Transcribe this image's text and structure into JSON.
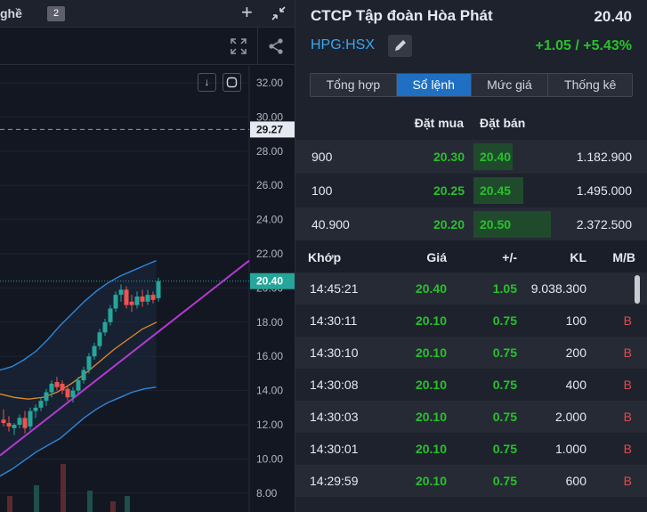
{
  "chart_panel": {
    "tab_label": "ghề",
    "tab_count": "2",
    "add_tab": "+",
    "download_label": "↓"
  },
  "chart_data": {
    "type": "candlestick",
    "y_ticks": [
      "32.00",
      "30.00",
      "28.00",
      "26.00",
      "24.00",
      "22.00",
      "20.00",
      "18.00",
      "16.00",
      "14.00",
      "12.00",
      "10.00",
      "8.00"
    ],
    "ylim": [
      8,
      33
    ],
    "price_line_label": "20.40",
    "price_line_value": 20.4,
    "dashed_line_label": "29.27",
    "dashed_line_value": 29.27,
    "colors": {
      "up": "#26a69a",
      "down": "#ef5350",
      "bands": "#2f86d8",
      "ma": "#e08a28",
      "trend": "#b43ad0",
      "price_tag": "#26a69a"
    },
    "candles": [
      {
        "o": 12.3,
        "h": 12.9,
        "l": 11.9,
        "c": 12.1
      },
      {
        "o": 12.1,
        "h": 12.5,
        "l": 11.6,
        "c": 11.9
      },
      {
        "o": 11.8,
        "h": 12.1,
        "l": 11.4,
        "c": 12.0
      },
      {
        "o": 12.0,
        "h": 12.6,
        "l": 11.8,
        "c": 12.4
      },
      {
        "o": 12.4,
        "h": 12.8,
        "l": 11.5,
        "c": 11.8
      },
      {
        "o": 11.9,
        "h": 13.0,
        "l": 11.7,
        "c": 12.8
      },
      {
        "o": 12.8,
        "h": 13.2,
        "l": 12.4,
        "c": 13.0
      },
      {
        "o": 13.0,
        "h": 13.6,
        "l": 12.8,
        "c": 13.4
      },
      {
        "o": 13.4,
        "h": 14.1,
        "l": 13.1,
        "c": 13.9
      },
      {
        "o": 13.9,
        "h": 14.6,
        "l": 13.6,
        "c": 14.4
      },
      {
        "o": 14.5,
        "h": 14.8,
        "l": 14.0,
        "c": 14.2
      },
      {
        "o": 14.4,
        "h": 14.6,
        "l": 13.8,
        "c": 14.0
      },
      {
        "o": 14.1,
        "h": 14.3,
        "l": 13.4,
        "c": 13.6
      },
      {
        "o": 13.6,
        "h": 14.2,
        "l": 13.3,
        "c": 14.0
      },
      {
        "o": 14.0,
        "h": 14.8,
        "l": 13.8,
        "c": 14.6
      },
      {
        "o": 14.6,
        "h": 15.4,
        "l": 14.4,
        "c": 15.2
      },
      {
        "o": 15.2,
        "h": 16.2,
        "l": 15.0,
        "c": 16.0
      },
      {
        "o": 16.0,
        "h": 16.8,
        "l": 15.8,
        "c": 16.6
      },
      {
        "o": 16.6,
        "h": 17.6,
        "l": 16.4,
        "c": 17.4
      },
      {
        "o": 17.4,
        "h": 18.2,
        "l": 17.2,
        "c": 18.0
      },
      {
        "o": 18.0,
        "h": 19.0,
        "l": 17.8,
        "c": 18.8
      },
      {
        "o": 18.8,
        "h": 19.8,
        "l": 18.6,
        "c": 19.6
      },
      {
        "o": 19.6,
        "h": 20.2,
        "l": 19.2,
        "c": 19.9
      },
      {
        "o": 19.9,
        "h": 20.1,
        "l": 18.8,
        "c": 19.0
      },
      {
        "o": 19.2,
        "h": 19.6,
        "l": 18.6,
        "c": 19.0
      },
      {
        "o": 19.0,
        "h": 19.8,
        "l": 18.8,
        "c": 19.5
      },
      {
        "o": 19.5,
        "h": 19.9,
        "l": 18.9,
        "c": 19.2
      },
      {
        "o": 19.2,
        "h": 19.9,
        "l": 19.0,
        "c": 19.6
      },
      {
        "o": 19.6,
        "h": 19.8,
        "l": 19.1,
        "c": 19.3
      },
      {
        "o": 19.4,
        "h": 20.6,
        "l": 19.2,
        "c": 20.4
      }
    ],
    "bb_upper": [
      15.2,
      15.4,
      15.8,
      16.3,
      17.0,
      17.8,
      18.5,
      19.2,
      19.8,
      20.3,
      20.7,
      21.0,
      21.3,
      21.6
    ],
    "bb_lower": [
      9.0,
      9.4,
      9.9,
      10.4,
      10.8,
      11.2,
      11.8,
      12.4,
      12.9,
      13.3,
      13.6,
      13.9,
      14.1,
      14.2
    ],
    "ma": [
      13.8,
      13.6,
      13.5,
      13.6,
      13.9,
      14.4,
      15.0,
      15.7,
      16.4,
      17.0,
      17.6,
      18.0
    ],
    "volume_bars": [
      0.3,
      0.5,
      0.9,
      0.4,
      0.2,
      0.3
    ]
  },
  "info": {
    "company": "CTCP Tập đoàn Hòa Phát",
    "price": "20.40",
    "symbol": "HPG:HSX",
    "change": "+1.05 / +5.43%"
  },
  "tabs": [
    "Tổng hợp",
    "Sổ lệnh",
    "Mức giá",
    "Thống kê"
  ],
  "orderbook": {
    "header_bid": "Đặt mua",
    "header_ask": "Đặt bán",
    "rows": [
      {
        "bid_vol": "900",
        "bid": "20.30",
        "ask": "20.40",
        "ask_vol": "1.182.900",
        "depth": 0.29
      },
      {
        "bid_vol": "100",
        "bid": "20.25",
        "ask": "20.45",
        "ask_vol": "1.495.000",
        "depth": 0.37
      },
      {
        "bid_vol": "40.900",
        "bid": "20.20",
        "ask": "20.50",
        "ask_vol": "2.372.500",
        "depth": 0.58
      }
    ]
  },
  "trades": {
    "headers": {
      "time": "Khớp",
      "price": "Giá",
      "change": "+/-",
      "volume": "KL",
      "side": "M/B"
    },
    "rows": [
      {
        "time": "14:45:21",
        "price": "20.40",
        "change": "1.05",
        "volume": "9.038.300",
        "side": ""
      },
      {
        "time": "14:30:11",
        "price": "20.10",
        "change": "0.75",
        "volume": "100",
        "side": "B"
      },
      {
        "time": "14:30:10",
        "price": "20.10",
        "change": "0.75",
        "volume": "200",
        "side": "B"
      },
      {
        "time": "14:30:08",
        "price": "20.10",
        "change": "0.75",
        "volume": "400",
        "side": "B"
      },
      {
        "time": "14:30:03",
        "price": "20.10",
        "change": "0.75",
        "volume": "2.000",
        "side": "B"
      },
      {
        "time": "14:30:01",
        "price": "20.10",
        "change": "0.75",
        "volume": "1.000",
        "side": "B"
      },
      {
        "time": "14:29:59",
        "price": "20.10",
        "change": "0.75",
        "volume": "600",
        "side": "B"
      }
    ]
  }
}
